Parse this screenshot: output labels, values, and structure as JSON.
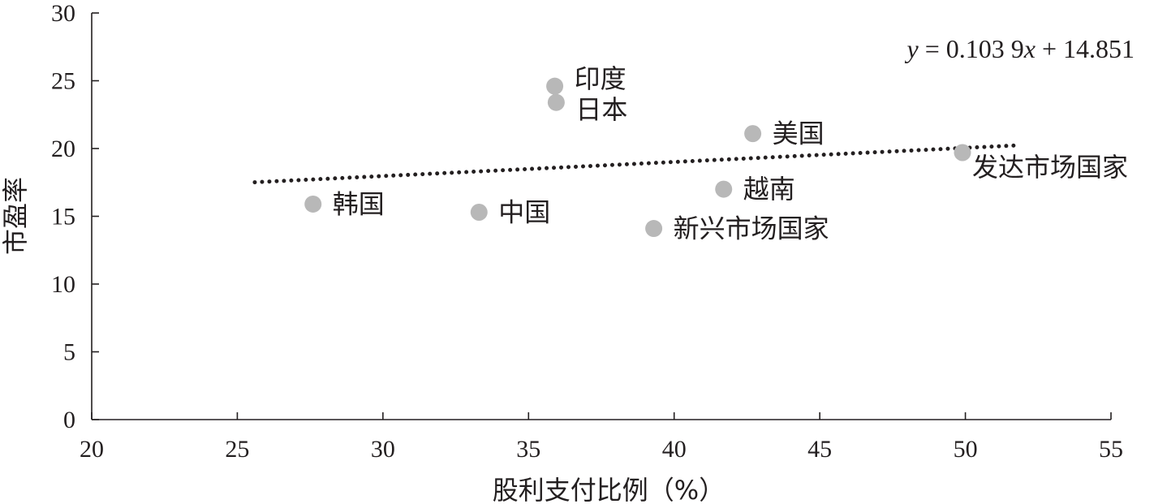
{
  "chart_data": {
    "type": "scatter",
    "xlabel": "股利支付比例（%）",
    "ylabel": "市盈率",
    "xlim": [
      20,
      55
    ],
    "ylim": [
      0,
      30
    ],
    "xticks": [
      20,
      25,
      30,
      35,
      40,
      45,
      50,
      55
    ],
    "yticks": [
      0,
      5,
      10,
      15,
      20,
      25,
      30
    ],
    "grid": false,
    "points": [
      {
        "label": "印度",
        "x": 35.9,
        "y": 24.6
      },
      {
        "label": "日本",
        "x": 35.95,
        "y": 23.4
      },
      {
        "label": "美国",
        "x": 42.7,
        "y": 21.1
      },
      {
        "label": "发达市场国家",
        "x": 49.9,
        "y": 19.7
      },
      {
        "label": "越南",
        "x": 41.7,
        "y": 17.0
      },
      {
        "label": "韩国",
        "x": 27.6,
        "y": 15.9
      },
      {
        "label": "中国",
        "x": 33.3,
        "y": 15.3
      },
      {
        "label": "新兴市场国家",
        "x": 39.3,
        "y": 14.1
      }
    ],
    "trendline": {
      "style": "dotted",
      "slope": 0.1039,
      "intercept": 14.851,
      "x_range": [
        25.6,
        51.8
      ]
    },
    "equation_prefix": "y",
    "equation_middle": " = 0.103 9",
    "equation_var": "x",
    "equation_suffix": " + 14.851"
  }
}
